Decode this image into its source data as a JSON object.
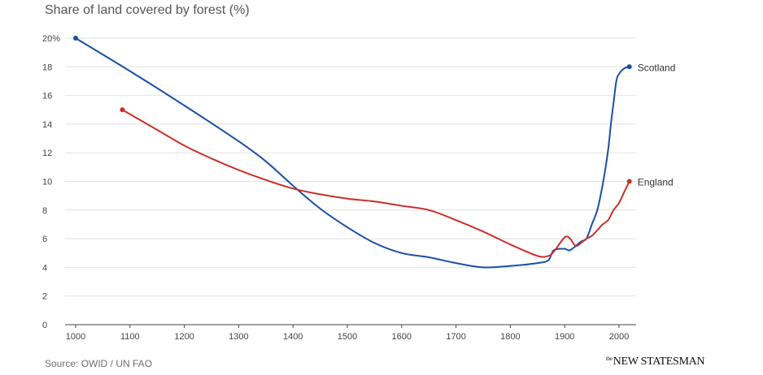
{
  "chart_title": "Share of land covered by forest (%)",
  "source": "Source: OWID / UN FAO",
  "brand": {
    "prefix": "the",
    "word": "NEW STATESMAN"
  },
  "chart_data": {
    "type": "line",
    "title": "Share of land covered by forest (%)",
    "xlabel": "",
    "ylabel": "",
    "xlim": [
      1000,
      2020
    ],
    "ylim": [
      0,
      20
    ],
    "x_ticks": [
      1000,
      1100,
      1200,
      1300,
      1400,
      1500,
      1600,
      1700,
      1800,
      1900,
      2000
    ],
    "y_ticks": [
      {
        "value": 0,
        "label": "0"
      },
      {
        "value": 2,
        "label": "2"
      },
      {
        "value": 4,
        "label": "4"
      },
      {
        "value": 6,
        "label": "6"
      },
      {
        "value": 8,
        "label": "8"
      },
      {
        "value": 10,
        "label": "10"
      },
      {
        "value": 12,
        "label": "12"
      },
      {
        "value": 14,
        "label": "14"
      },
      {
        "value": 16,
        "label": "16"
      },
      {
        "value": 18,
        "label": "18"
      },
      {
        "value": 20,
        "label": "20%"
      }
    ],
    "grid": true,
    "series": [
      {
        "name": "Scotland",
        "color": "#1a4fa6",
        "points": [
          [
            1000,
            20
          ],
          [
            1100,
            17.7
          ],
          [
            1200,
            15.3
          ],
          [
            1300,
            12.8
          ],
          [
            1350,
            11.4
          ],
          [
            1400,
            9.7
          ],
          [
            1450,
            8.1
          ],
          [
            1500,
            6.8
          ],
          [
            1550,
            5.7
          ],
          [
            1600,
            5.0
          ],
          [
            1650,
            4.7
          ],
          [
            1700,
            4.3
          ],
          [
            1750,
            4.0
          ],
          [
            1800,
            4.1
          ],
          [
            1850,
            4.3
          ],
          [
            1870,
            4.5
          ],
          [
            1880,
            5.2
          ],
          [
            1900,
            5.3
          ],
          [
            1910,
            5.2
          ],
          [
            1930,
            5.8
          ],
          [
            1940,
            6.0
          ],
          [
            1950,
            7.0
          ],
          [
            1960,
            8.0
          ],
          [
            1970,
            9.8
          ],
          [
            1980,
            12.2
          ],
          [
            1985,
            14.0
          ],
          [
            1990,
            15.5
          ],
          [
            1995,
            17.0
          ],
          [
            2000,
            17.5
          ],
          [
            2010,
            17.9
          ],
          [
            2019,
            18.0
          ]
        ]
      },
      {
        "name": "England",
        "color": "#c8312b",
        "points": [
          [
            1086,
            15.0
          ],
          [
            1150,
            13.6
          ],
          [
            1200,
            12.5
          ],
          [
            1250,
            11.6
          ],
          [
            1300,
            10.8
          ],
          [
            1350,
            10.1
          ],
          [
            1400,
            9.5
          ],
          [
            1450,
            9.1
          ],
          [
            1500,
            8.8
          ],
          [
            1550,
            8.6
          ],
          [
            1600,
            8.3
          ],
          [
            1650,
            8.0
          ],
          [
            1700,
            7.3
          ],
          [
            1750,
            6.5
          ],
          [
            1800,
            5.6
          ],
          [
            1850,
            4.8
          ],
          [
            1870,
            4.8
          ],
          [
            1880,
            5.1
          ],
          [
            1900,
            6.1
          ],
          [
            1910,
            6.0
          ],
          [
            1920,
            5.5
          ],
          [
            1930,
            5.7
          ],
          [
            1940,
            6.0
          ],
          [
            1950,
            6.2
          ],
          [
            1960,
            6.6
          ],
          [
            1970,
            7.0
          ],
          [
            1980,
            7.3
          ],
          [
            1990,
            8.0
          ],
          [
            2000,
            8.5
          ],
          [
            2010,
            9.3
          ],
          [
            2019,
            10.0
          ]
        ]
      }
    ]
  }
}
